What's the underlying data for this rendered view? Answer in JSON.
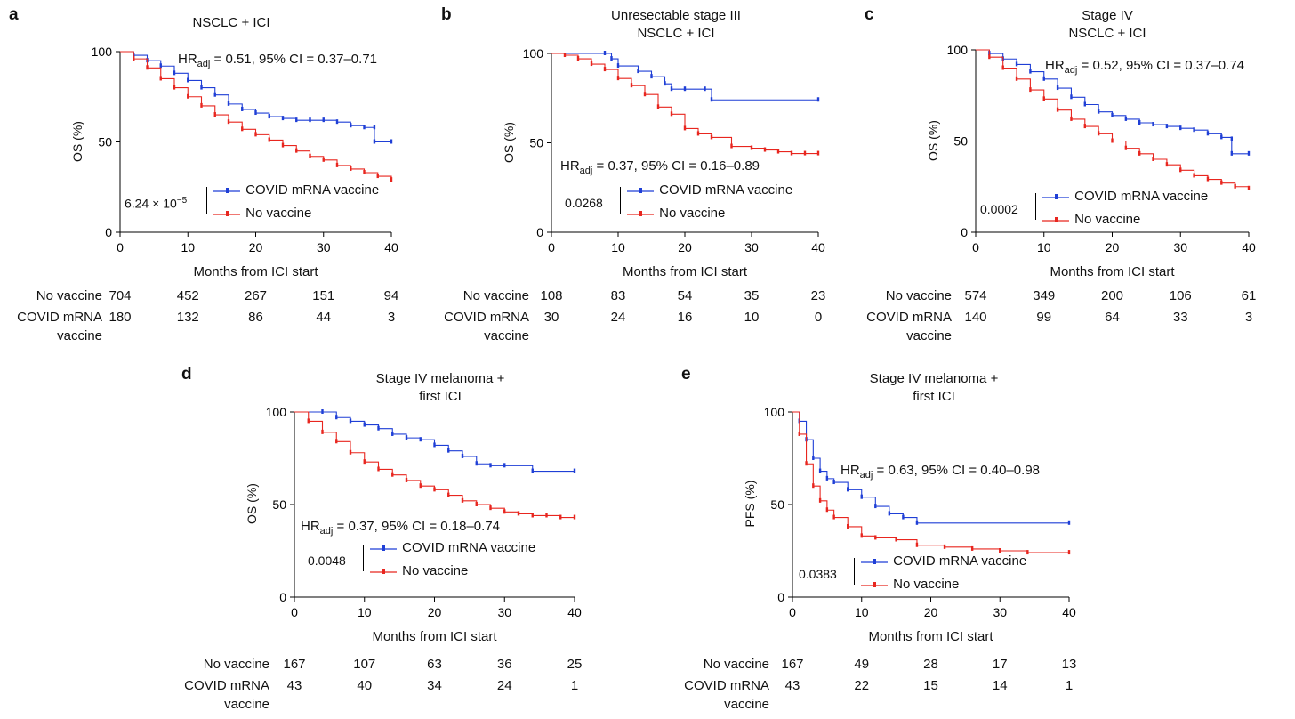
{
  "colors": {
    "vaccine": "#1f3fd6",
    "no_vaccine": "#e8261f",
    "axis": "#000000"
  },
  "chart_data": [
    {
      "type": "line",
      "panel": "a",
      "title": "NSCLC + ICI",
      "xlabel": "Months from ICI start",
      "ylabel": "OS (%)",
      "xlim": [
        0,
        40
      ],
      "ylim": [
        0,
        100
      ],
      "xticks": [
        "0",
        "10",
        "20",
        "30",
        "40"
      ],
      "yticks": [
        "0",
        "50",
        "100"
      ],
      "hr_prefix": "HR",
      "hr_sub": "adj",
      "hr_text": " = 0.51, 95% CI = 0.37–0.71",
      "p_value": "6.24 × 10",
      "p_exp": "−5",
      "series": [
        {
          "name": "COVID mRNA vaccine",
          "color_key": "vaccine",
          "x": [
            0,
            2,
            4,
            6,
            8,
            10,
            12,
            14,
            16,
            18,
            20,
            22,
            24,
            26,
            28,
            30,
            32,
            34,
            36,
            37.5,
            37.5,
            40
          ],
          "y": [
            100,
            98,
            95,
            92,
            88,
            84,
            80,
            76,
            71,
            68,
            66,
            64,
            63,
            62,
            62,
            62,
            61,
            59,
            58,
            58,
            50,
            50
          ]
        },
        {
          "name": "No vaccine",
          "color_key": "no_vaccine",
          "x": [
            0,
            2,
            4,
            6,
            8,
            10,
            12,
            14,
            16,
            18,
            20,
            22,
            24,
            26,
            28,
            30,
            32,
            34,
            36,
            38,
            40
          ],
          "y": [
            100,
            96,
            91,
            85,
            80,
            75,
            70,
            65,
            61,
            57,
            54,
            51,
            48,
            45,
            42,
            40,
            37,
            35,
            33,
            31,
            29
          ]
        }
      ],
      "risk_labels": [
        "No vaccine",
        "COVID mRNA\nvaccine"
      ],
      "risk_rows": [
        [
          "704",
          "452",
          "267",
          "151",
          "94"
        ],
        [
          "180",
          "132",
          "86",
          "44",
          "3"
        ]
      ]
    },
    {
      "type": "line",
      "panel": "b",
      "title": "Unresectable stage III\nNSCLC + ICI",
      "xlabel": "Months from ICI start",
      "ylabel": "OS (%)",
      "xlim": [
        0,
        40
      ],
      "ylim": [
        0,
        100
      ],
      "xticks": [
        "0",
        "10",
        "20",
        "30",
        "40"
      ],
      "yticks": [
        "0",
        "50",
        "100"
      ],
      "hr_prefix": "HR",
      "hr_sub": "adj",
      "hr_text": " = 0.37, 95% CI = 0.16–0.89",
      "p_value": "0.0268",
      "p_exp": "",
      "series": [
        {
          "name": "COVID mRNA vaccine",
          "color_key": "vaccine",
          "x": [
            0,
            8,
            9,
            10,
            13,
            15,
            17,
            18,
            20,
            23,
            24,
            40
          ],
          "y": [
            100,
            100,
            97,
            93,
            90,
            87,
            83,
            80,
            80,
            80,
            74,
            74
          ]
        },
        {
          "name": "No vaccine",
          "color_key": "no_vaccine",
          "x": [
            0,
            2,
            4,
            6,
            8,
            10,
            12,
            14,
            16,
            18,
            20,
            22,
            24,
            27,
            30,
            32,
            34,
            36,
            38,
            40
          ],
          "y": [
            100,
            99,
            97,
            94,
            91,
            86,
            82,
            77,
            70,
            66,
            58,
            55,
            53,
            48,
            47,
            46,
            45,
            44,
            44,
            44
          ]
        }
      ],
      "risk_labels": [
        "No vaccine",
        "COVID mRNA\nvaccine"
      ],
      "risk_rows": [
        [
          "108",
          "83",
          "54",
          "35",
          "23"
        ],
        [
          "30",
          "24",
          "16",
          "10",
          "0"
        ]
      ]
    },
    {
      "type": "line",
      "panel": "c",
      "title": "Stage IV\nNSCLC + ICI",
      "xlabel": "Months from ICI start",
      "ylabel": "OS (%)",
      "xlim": [
        0,
        40
      ],
      "ylim": [
        0,
        100
      ],
      "xticks": [
        "0",
        "10",
        "20",
        "30",
        "40"
      ],
      "yticks": [
        "0",
        "50",
        "100"
      ],
      "hr_prefix": "HR",
      "hr_sub": "adj",
      "hr_text": " = 0.52, 95% CI = 0.37–0.74",
      "p_value": "0.0002",
      "p_exp": "",
      "series": [
        {
          "name": "COVID mRNA vaccine",
          "color_key": "vaccine",
          "x": [
            0,
            2,
            4,
            6,
            8,
            10,
            12,
            14,
            16,
            18,
            20,
            22,
            24,
            26,
            28,
            30,
            32,
            34,
            36,
            37.5,
            37.5,
            40
          ],
          "y": [
            100,
            98,
            95,
            92,
            88,
            84,
            79,
            74,
            70,
            66,
            64,
            62,
            60,
            59,
            58,
            57,
            56,
            54,
            52,
            51,
            43,
            43
          ]
        },
        {
          "name": "No vaccine",
          "color_key": "no_vaccine",
          "x": [
            0,
            2,
            4,
            6,
            8,
            10,
            12,
            14,
            16,
            18,
            20,
            22,
            24,
            26,
            28,
            30,
            32,
            34,
            36,
            38,
            40
          ],
          "y": [
            100,
            96,
            90,
            84,
            78,
            73,
            67,
            62,
            58,
            54,
            50,
            46,
            43,
            40,
            37,
            34,
            31,
            29,
            27,
            25,
            24
          ]
        }
      ],
      "risk_labels": [
        "No vaccine",
        "COVID mRNA\nvaccine"
      ],
      "risk_rows": [
        [
          "574",
          "349",
          "200",
          "106",
          "61"
        ],
        [
          "140",
          "99",
          "64",
          "33",
          "3"
        ]
      ]
    },
    {
      "type": "line",
      "panel": "d",
      "title": "Stage IV melanoma +\nfirst ICI",
      "xlabel": "Months from ICI start",
      "ylabel": "OS (%)",
      "xlim": [
        0,
        40
      ],
      "ylim": [
        0,
        100
      ],
      "xticks": [
        "0",
        "10",
        "20",
        "30",
        "40"
      ],
      "yticks": [
        "0",
        "50",
        "100"
      ],
      "hr_prefix": "HR",
      "hr_sub": "adj",
      "hr_text": " = 0.37, 95% CI = 0.18–0.74",
      "p_value": "0.0048",
      "p_exp": "",
      "series": [
        {
          "name": "COVID mRNA vaccine",
          "color_key": "vaccine",
          "x": [
            0,
            4,
            6,
            8,
            10,
            12,
            14,
            16,
            18,
            20,
            22,
            24,
            26,
            28,
            30,
            34,
            40
          ],
          "y": [
            100,
            100,
            97,
            95,
            93,
            91,
            88,
            86,
            85,
            82,
            79,
            76,
            72,
            71,
            71,
            68,
            68
          ]
        },
        {
          "name": "No vaccine",
          "color_key": "no_vaccine",
          "x": [
            0,
            2,
            4,
            6,
            8,
            10,
            12,
            14,
            16,
            18,
            20,
            22,
            24,
            26,
            28,
            30,
            32,
            34,
            36,
            38,
            40
          ],
          "y": [
            100,
            95,
            89,
            84,
            78,
            73,
            69,
            66,
            63,
            60,
            58,
            55,
            52,
            50,
            48,
            46,
            45,
            44,
            44,
            43,
            43
          ]
        }
      ],
      "risk_labels": [
        "No vaccine",
        "COVID mRNA\nvaccine"
      ],
      "risk_rows": [
        [
          "167",
          "107",
          "63",
          "36",
          "25"
        ],
        [
          "43",
          "40",
          "34",
          "24",
          "1"
        ]
      ]
    },
    {
      "type": "line",
      "panel": "e",
      "title": "Stage IV melanoma +\nfirst ICI",
      "xlabel": "Months from ICI start",
      "ylabel": "PFS (%)",
      "xlim": [
        0,
        40
      ],
      "ylim": [
        0,
        100
      ],
      "xticks": [
        "0",
        "10",
        "20",
        "30",
        "40"
      ],
      "yticks": [
        "0",
        "50",
        "100"
      ],
      "hr_prefix": "HR",
      "hr_sub": "adj",
      "hr_text": " = 0.63, 95% CI = 0.40–0.98",
      "p_value": "0.0383",
      "p_exp": "",
      "series": [
        {
          "name": "COVID mRNA vaccine",
          "color_key": "vaccine",
          "x": [
            0,
            1,
            2,
            3,
            4,
            5,
            6,
            8,
            10,
            12,
            14,
            16,
            18,
            40
          ],
          "y": [
            100,
            95,
            85,
            75,
            68,
            64,
            62,
            58,
            54,
            49,
            45,
            43,
            40,
            40
          ]
        },
        {
          "name": "No vaccine",
          "color_key": "no_vaccine",
          "x": [
            0,
            1,
            2,
            3,
            4,
            5,
            6,
            8,
            10,
            12,
            15,
            18,
            22,
            26,
            30,
            34,
            40
          ],
          "y": [
            100,
            88,
            72,
            60,
            52,
            47,
            43,
            38,
            33,
            32,
            31,
            28,
            27,
            26,
            25,
            24,
            24
          ]
        }
      ],
      "risk_labels": [
        "No vaccine",
        "COVID mRNA\nvaccine"
      ],
      "risk_rows": [
        [
          "167",
          "49",
          "28",
          "17",
          "13"
        ],
        [
          "43",
          "22",
          "15",
          "14",
          "1"
        ]
      ]
    }
  ]
}
